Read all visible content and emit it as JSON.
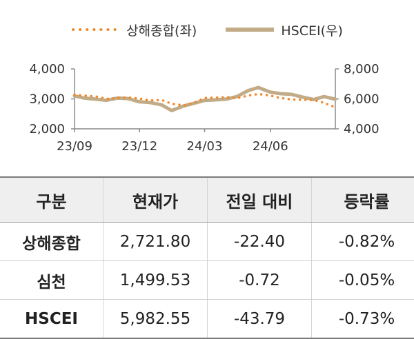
{
  "chart_data": {
    "type": "line",
    "x_ticks": [
      "23/09",
      "23/12",
      "24/03",
      "24/06"
    ],
    "left_axis": {
      "ticks": [
        "4,000",
        "3,000",
        "2,000"
      ],
      "ylim": [
        2000,
        4000
      ]
    },
    "right_axis": {
      "ticks": [
        "8,000",
        "6,000",
        "4,000"
      ],
      "ylim": [
        4000,
        8000
      ]
    },
    "x_range": [
      "2023-09",
      "2024-08"
    ],
    "grid": false,
    "legend_position": "top-center",
    "series": [
      {
        "name": "상해종합(좌)",
        "axis": "left",
        "style": "dotted",
        "color": "#f08a2c",
        "x": [
          "2023-09-01",
          "2023-09-15",
          "2023-10-01",
          "2023-10-15",
          "2023-11-01",
          "2023-11-15",
          "2023-12-01",
          "2023-12-15",
          "2024-01-01",
          "2024-01-15",
          "2024-02-01",
          "2024-02-15",
          "2024-03-01",
          "2024-03-15",
          "2024-04-01",
          "2024-04-15",
          "2024-05-01",
          "2024-05-15",
          "2024-06-01",
          "2024-06-15",
          "2024-07-01",
          "2024-07-15",
          "2024-08-01",
          "2024-08-15",
          "2024-08-31"
        ],
        "values": [
          3130,
          3110,
          3080,
          3000,
          3030,
          3050,
          3010,
          2950,
          2960,
          2840,
          2780,
          2870,
          3030,
          3040,
          3060,
          3020,
          3110,
          3160,
          3110,
          3030,
          2980,
          2970,
          2960,
          2870,
          2720
        ]
      },
      {
        "name": "HSCEI(우)",
        "axis": "right",
        "style": "solid",
        "color": "#c2ab87",
        "x": [
          "2023-09-01",
          "2023-09-15",
          "2023-10-01",
          "2023-10-15",
          "2023-11-01",
          "2023-11-15",
          "2023-12-01",
          "2023-12-15",
          "2024-01-01",
          "2024-01-15",
          "2024-02-01",
          "2024-02-15",
          "2024-03-01",
          "2024-03-15",
          "2024-04-01",
          "2024-04-15",
          "2024-05-01",
          "2024-05-15",
          "2024-06-01",
          "2024-06-15",
          "2024-07-01",
          "2024-07-15",
          "2024-08-01",
          "2024-08-15",
          "2024-08-31"
        ],
        "values": [
          6200,
          6050,
          5980,
          5900,
          6060,
          6020,
          5800,
          5760,
          5600,
          5220,
          5530,
          5700,
          5900,
          5930,
          5990,
          6150,
          6550,
          6760,
          6450,
          6350,
          6300,
          6130,
          5960,
          6150,
          5980
        ]
      }
    ]
  },
  "table": {
    "headers": [
      "구분",
      "현재가",
      "전일 대비",
      "등락률"
    ],
    "rows": [
      [
        "상해종합",
        "2,721.80",
        "-22.40",
        "-0.82%"
      ],
      [
        "심천",
        "1,499.53",
        "-0.72",
        "-0.05%"
      ],
      [
        "HSCEI",
        "5,982.55",
        "-43.79",
        "-0.73%"
      ]
    ]
  }
}
